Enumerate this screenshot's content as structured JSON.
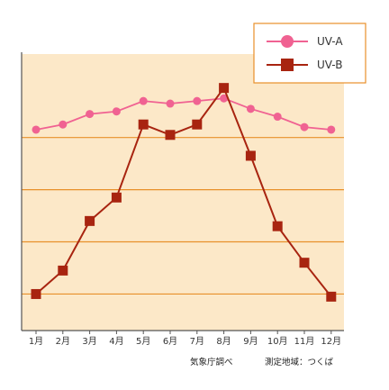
{
  "chart_data": {
    "type": "line",
    "categories": [
      "1月",
      "2月",
      "3月",
      "4月",
      "5月",
      "6月",
      "7月",
      "8月",
      "9月",
      "10月",
      "11月",
      "12月"
    ],
    "series": [
      {
        "name": "UV-A",
        "values": [
          7.3,
          7.5,
          7.9,
          8.0,
          8.4,
          8.3,
          8.4,
          8.5,
          8.1,
          7.8,
          7.4,
          7.3
        ],
        "color": "#f06292",
        "marker": "circle"
      },
      {
        "name": "UV-B",
        "values": [
          1.0,
          1.9,
          3.8,
          4.7,
          7.5,
          7.1,
          7.5,
          8.9,
          6.3,
          3.6,
          2.2,
          0.9
        ],
        "color": "#a82410",
        "marker": "square"
      }
    ],
    "ylim": [
      -0.4,
      10.2
    ],
    "gridlines": [
      1,
      3,
      5,
      7
    ],
    "y_tick_labels": "none",
    "grid": true,
    "legend_position": "top-right",
    "background": "#fce8c8",
    "grid_color": "#e8902a"
  },
  "source_note": {
    "surveyed_by": "気象庁調べ",
    "location": "測定地域：つくば"
  }
}
